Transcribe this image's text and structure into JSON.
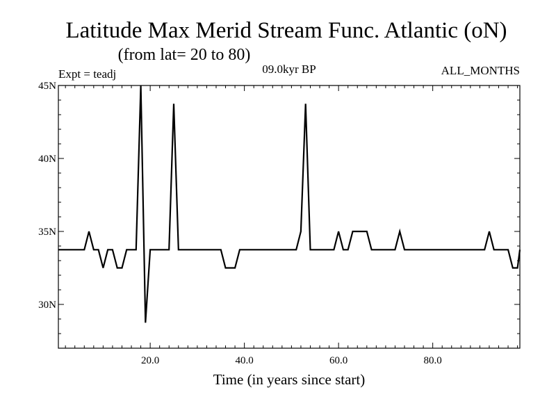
{
  "chart_data": {
    "type": "line",
    "title": "Latitude Max Merid Stream Func. Atlantic (oN)",
    "subtitle": "(from lat= 20 to 80)",
    "annotations": {
      "experiment": "Expt = teadj",
      "period": "09.0kyr BP",
      "months": "ALL_MONTHS"
    },
    "xlabel": "Time (in years since start)",
    "ylabel": "",
    "xlim": [
      0.5,
      98.5
    ],
    "ylim": [
      27,
      45
    ],
    "x_ticks": [
      20,
      40,
      60,
      80
    ],
    "x_tick_labels": [
      "20.0",
      "40.0",
      "60.0",
      "80.0"
    ],
    "y_ticks": [
      30,
      35,
      40,
      45
    ],
    "y_tick_labels": [
      "30N",
      "35N",
      "40N",
      "45N"
    ],
    "grid": false,
    "series": [
      {
        "color": "#000000",
        "x": [
          0.5,
          1,
          2,
          3,
          4,
          5,
          6,
          7,
          8,
          9,
          10,
          11,
          12,
          13,
          14,
          15,
          16,
          17,
          18,
          19,
          20,
          21,
          22,
          23,
          24,
          25,
          26,
          27,
          28,
          29,
          30,
          31,
          32,
          33,
          34,
          35,
          36,
          37,
          38,
          39,
          40,
          41,
          42,
          43,
          44,
          45,
          46,
          47,
          48,
          49,
          50,
          51,
          52,
          53,
          54,
          55,
          56,
          57,
          58,
          59,
          60,
          61,
          62,
          63,
          64,
          65,
          66,
          67,
          68,
          69,
          70,
          71,
          72,
          73,
          74,
          75,
          76,
          77,
          78,
          79,
          80,
          81,
          82,
          83,
          84,
          85,
          86,
          87,
          88,
          89,
          90,
          91,
          92,
          93,
          94,
          95,
          96,
          97,
          98,
          98.5
        ],
        "y": [
          33.75,
          33.75,
          33.75,
          33.75,
          33.75,
          33.75,
          33.75,
          35,
          33.75,
          33.75,
          32.5,
          33.75,
          33.75,
          32.5,
          32.5,
          33.75,
          33.75,
          33.75,
          45,
          28.75,
          33.75,
          33.75,
          33.75,
          33.75,
          33.75,
          43.75,
          33.75,
          33.75,
          33.75,
          33.75,
          33.75,
          33.75,
          33.75,
          33.75,
          33.75,
          33.75,
          32.5,
          32.5,
          32.5,
          33.75,
          33.75,
          33.75,
          33.75,
          33.75,
          33.75,
          33.75,
          33.75,
          33.75,
          33.75,
          33.75,
          33.75,
          33.75,
          35,
          43.75,
          33.75,
          33.75,
          33.75,
          33.75,
          33.75,
          33.75,
          35,
          33.75,
          33.75,
          35,
          35,
          35,
          35,
          33.75,
          33.75,
          33.75,
          33.75,
          33.75,
          33.75,
          35,
          33.75,
          33.75,
          33.75,
          33.75,
          33.75,
          33.75,
          33.75,
          33.75,
          33.75,
          33.75,
          33.75,
          33.75,
          33.75,
          33.75,
          33.75,
          33.75,
          33.75,
          33.75,
          35,
          33.75,
          33.75,
          33.75,
          33.75,
          32.5,
          32.5,
          33.75
        ]
      }
    ]
  }
}
